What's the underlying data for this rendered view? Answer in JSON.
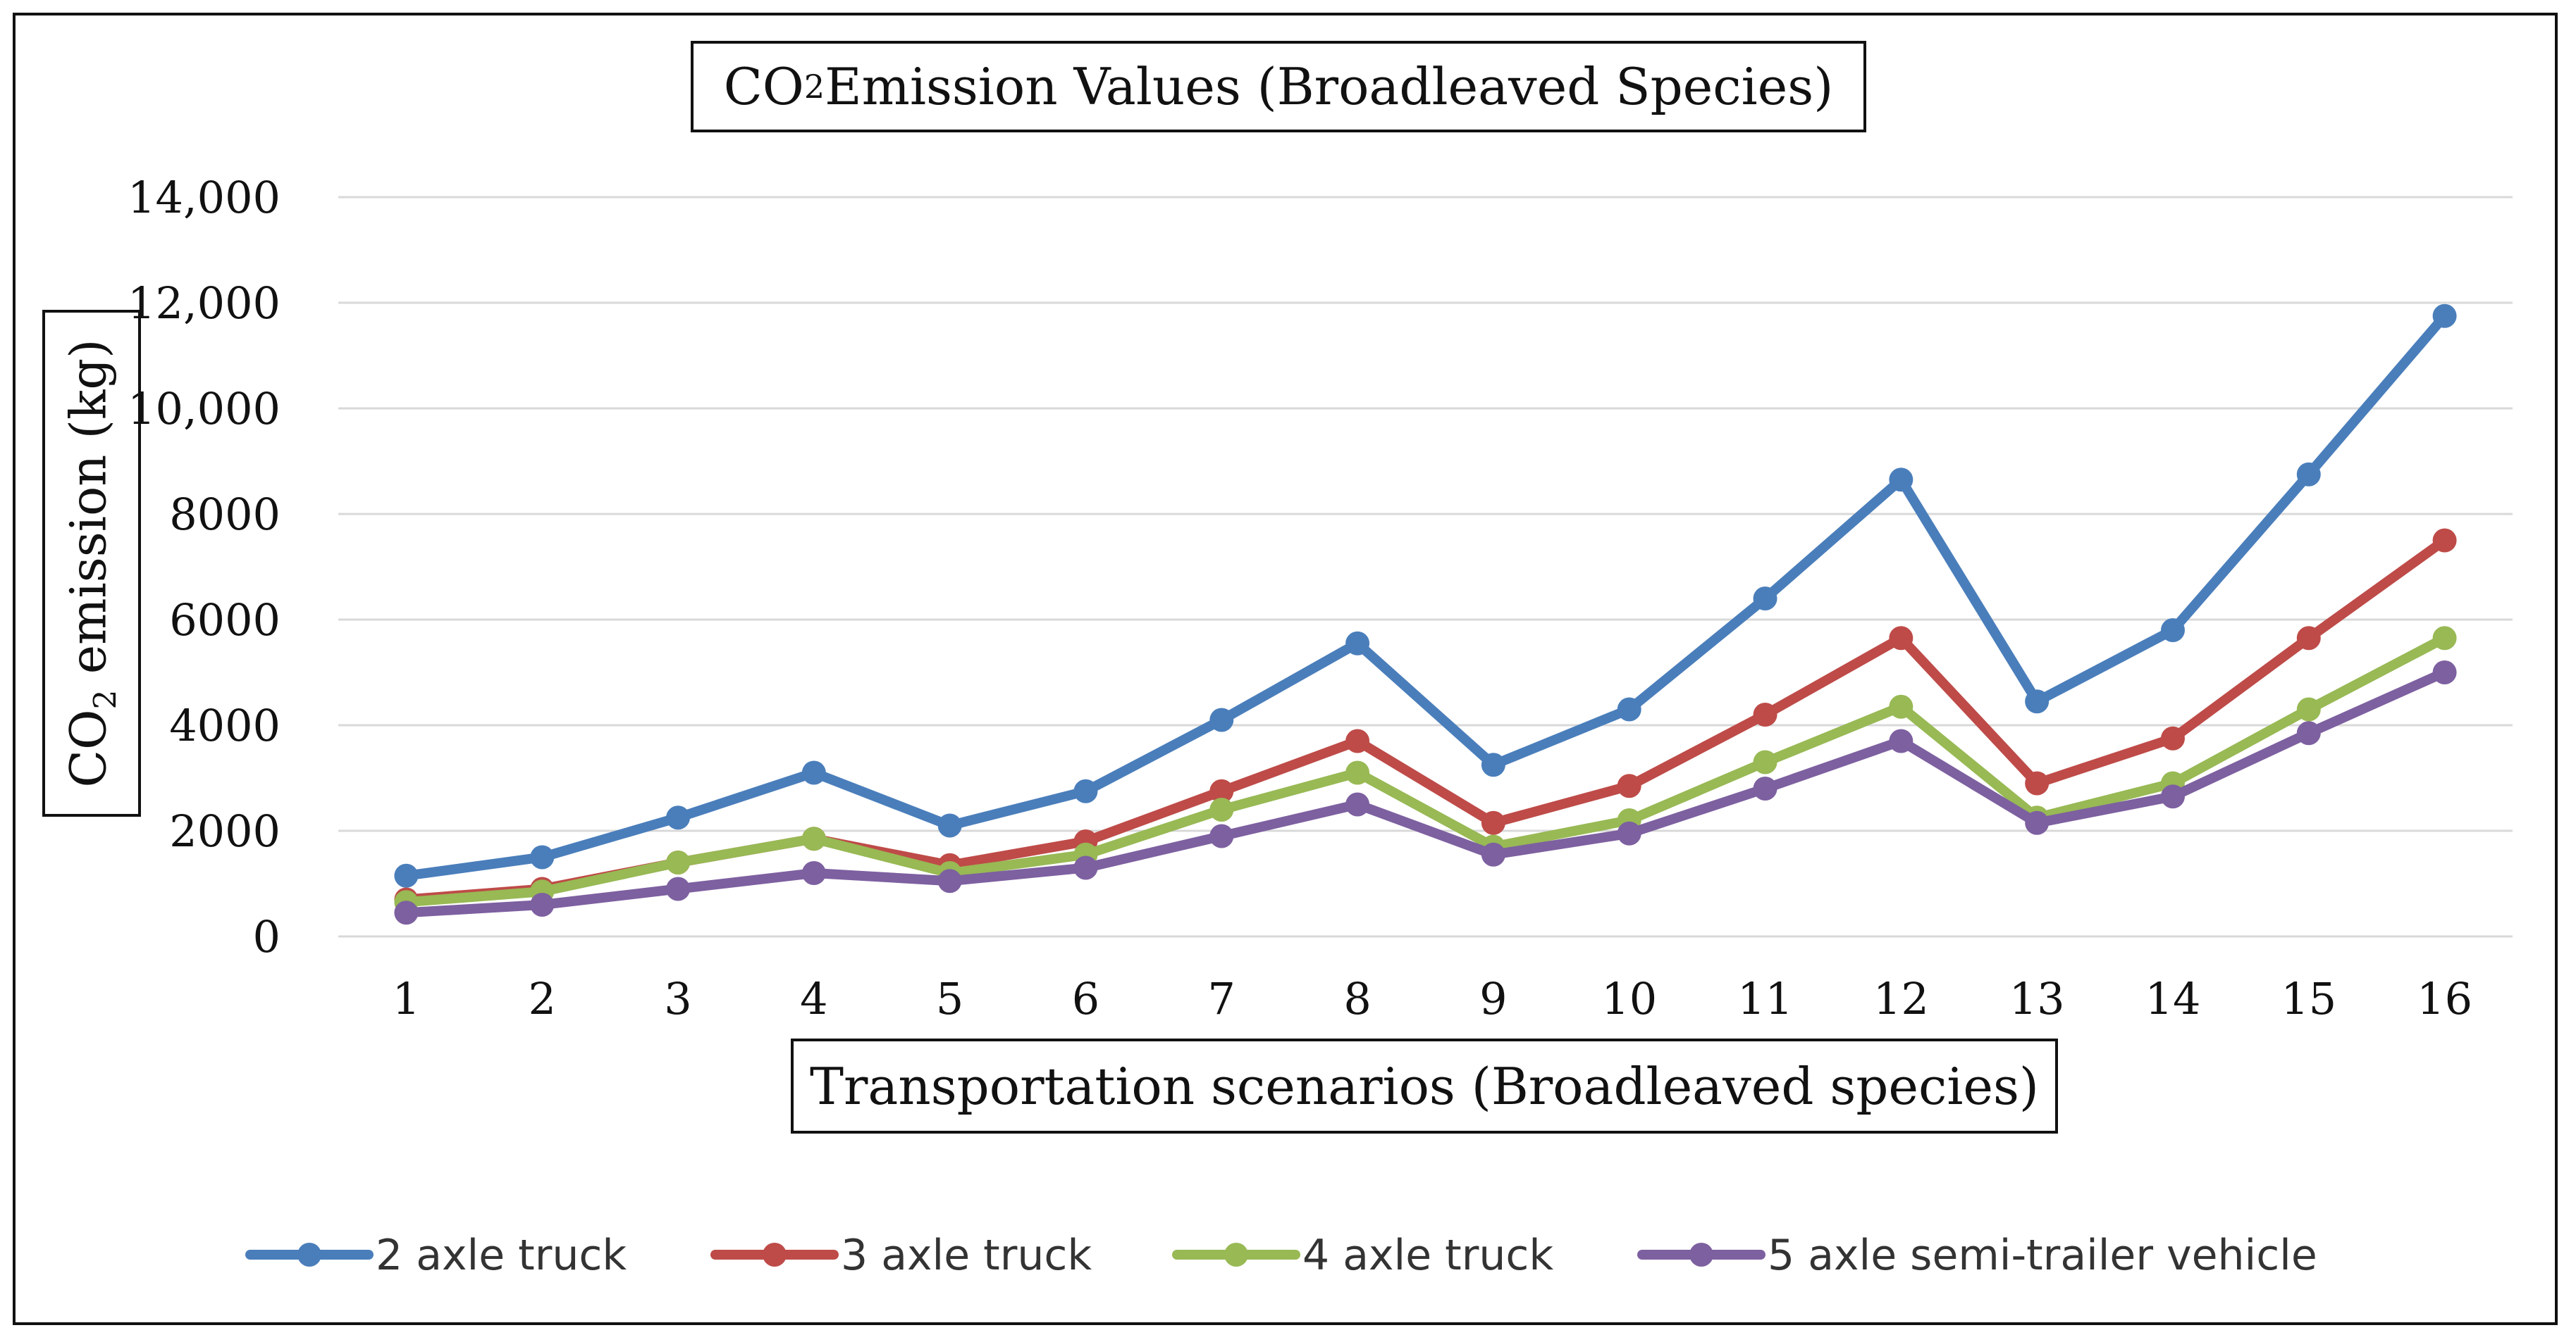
{
  "chart_data": {
    "type": "line",
    "title": {
      "main": "CO",
      "sub": "2",
      "rest": " Emission Values (Broadleaved Species)"
    },
    "ylabel": {
      "main": "CO",
      "sub": "2",
      "rest": " emission (kg)"
    },
    "xlabel": "Transportation scenarios (Broadleaved species)",
    "ylim": [
      0,
      14000
    ],
    "yticks": [
      0,
      2000,
      4000,
      6000,
      8000,
      10000,
      12000,
      14000
    ],
    "ytick_labels": [
      "0",
      "2000",
      "4000",
      "6000",
      "8000",
      "10,000",
      "12,000",
      "14,000"
    ],
    "categories": [
      "1",
      "2",
      "3",
      "4",
      "5",
      "6",
      "7",
      "8",
      "9",
      "10",
      "11",
      "12",
      "13",
      "14",
      "15",
      "16"
    ],
    "grid": true,
    "legend_position": "bottom",
    "series": [
      {
        "name": "2 axle truck",
        "color": "#4a7ebb",
        "values": [
          1150,
          1500,
          2250,
          3100,
          2100,
          2750,
          4100,
          5550,
          3250,
          4300,
          6400,
          8650,
          4450,
          5800,
          8750,
          11750
        ]
      },
      {
        "name": "3 axle truck",
        "color": "#be4b48",
        "values": [
          700,
          900,
          1400,
          1850,
          1350,
          1800,
          2750,
          3700,
          2150,
          2850,
          4200,
          5650,
          2900,
          3750,
          5650,
          7500
        ]
      },
      {
        "name": "4 axle truck",
        "color": "#98b954",
        "values": [
          650,
          850,
          1400,
          1850,
          1200,
          1550,
          2400,
          3100,
          1700,
          2200,
          3300,
          4350,
          2250,
          2900,
          4300,
          5650
        ]
      },
      {
        "name": "5 axle semi-trailer vehicle",
        "color": "#7d60a0",
        "values": [
          450,
          600,
          900,
          1200,
          1050,
          1300,
          1900,
          2500,
          1550,
          1950,
          2800,
          3700,
          2150,
          2650,
          3850,
          5000
        ]
      }
    ]
  }
}
